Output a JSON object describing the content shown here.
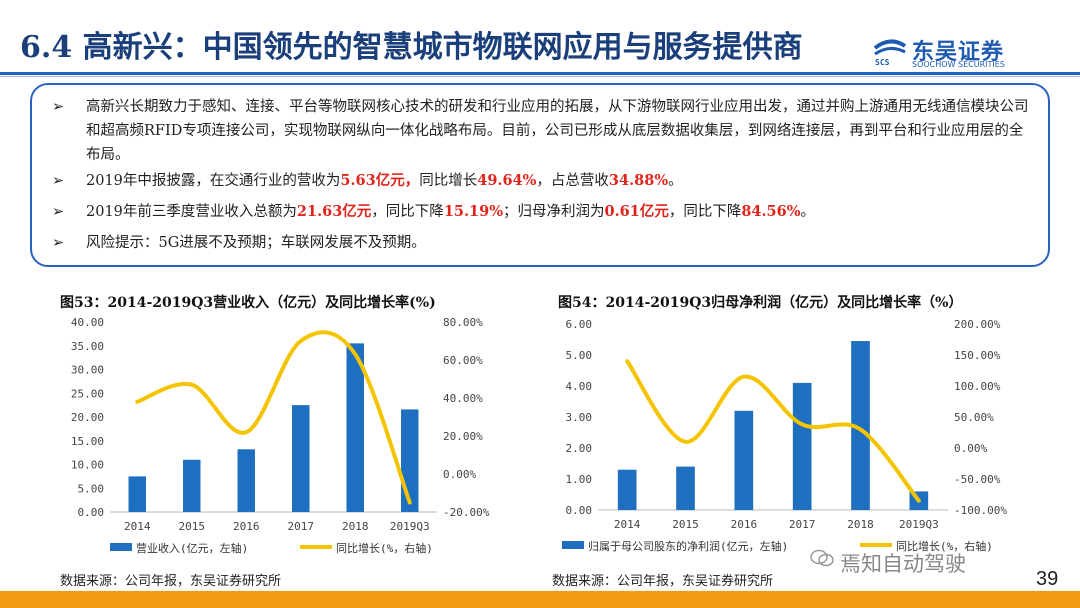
{
  "header": {
    "title": "6.4 高新兴：中国领先的智慧城市物联网应用与服务提供商",
    "logo_name": "东吴证券",
    "logo_sub": "SOOCHOW SECURITIES",
    "logo_mark": "SCS"
  },
  "summary": {
    "bullet_marker": "➢",
    "b1": "高新兴长期致力于感知、连接、平台等物联网核心技术的研发和行业应用的拓展，从下游物联网行业应用出发，通过并购上游通用无线通信模块公司和超高频RFID专项连接公司，实现物联网纵向一体化战略布局。目前，公司已形成从底层数据收集层，到网络连接层，再到平台和行业应用层的全布局。",
    "b2_a": "2019年中报披露，在交通行业的营收为",
    "b2_v1": "5.63亿元，",
    "b2_b": "同比增长",
    "b2_v2": "49.64%",
    "b2_c": "，占总营收",
    "b2_v3": "34.88%",
    "b2_d": "。",
    "b3_a": "2019年前三季度营业收入总额为",
    "b3_v1": "21.63亿元",
    "b3_b": "，同比下降",
    "b3_v2": "15.19%",
    "b3_c": "；归母净利润为",
    "b3_v3": "0.61亿元",
    "b3_d": "，同比下降",
    "b3_v4": "84.56%",
    "b3_e": "。",
    "b4": "风险提示：5G进展不及预期；车联网发展不及预期。"
  },
  "chart1_title": "图53：2014-2019Q3营业收入（亿元）及同比增长率(%)",
  "chart2_title": "图54：2014-2019Q3归母净利润（亿元）及同比增长率（%）",
  "source1": "数据来源：公司年报，东吴证券研究所",
  "source2": "数据来源：公司年报，东吴证券研究所",
  "page_number": "39",
  "watermark": "焉知自动驾驶",
  "colors": {
    "bar": "#1e6fc0",
    "line": "#f5c400",
    "accent": "#e1251b",
    "frame": "#2a62c3"
  },
  "chart_data": [
    {
      "type": "bar",
      "categories": [
        "2014",
        "2015",
        "2016",
        "2017",
        "2018",
        "2019Q3"
      ],
      "series": [
        {
          "name": "营业收入(亿元，左轴)",
          "type": "bar",
          "axis": "left",
          "values": [
            7.5,
            11.0,
            13.2,
            22.5,
            35.5,
            21.6
          ]
        },
        {
          "name": "同比增长(%，右轴)",
          "type": "line",
          "axis": "right",
          "values": [
            38,
            47,
            22,
            70,
            63,
            -15
          ]
        }
      ],
      "left_ticks": [
        "0.00",
        "5.00",
        "10.00",
        "15.00",
        "20.00",
        "25.00",
        "30.00",
        "35.00",
        "40.00"
      ],
      "right_ticks": [
        "-20.00%",
        "0.00%",
        "20.00%",
        "40.00%",
        "60.00%",
        "80.00%"
      ],
      "ylim_left": [
        0,
        40
      ],
      "ylim_right": [
        -20,
        80
      ]
    },
    {
      "type": "bar",
      "categories": [
        "2014",
        "2015",
        "2016",
        "2017",
        "2018",
        "2019Q3"
      ],
      "series": [
        {
          "name": "归属于母公司股东的净利润(亿元，左轴)",
          "type": "bar",
          "axis": "left",
          "values": [
            1.3,
            1.4,
            3.2,
            4.1,
            5.45,
            0.6
          ]
        },
        {
          "name": "同比增长(%，右轴)",
          "type": "line",
          "axis": "right",
          "values": [
            140,
            10,
            115,
            38,
            30,
            -85
          ]
        }
      ],
      "left_ticks": [
        "0.00",
        "1.00",
        "2.00",
        "3.00",
        "4.00",
        "5.00",
        "6.00"
      ],
      "right_ticks": [
        "-100.00%",
        "-50.00%",
        "0.00%",
        "50.00%",
        "100.00%",
        "150.00%",
        "200.00%"
      ],
      "ylim_left": [
        0,
        6
      ],
      "ylim_right": [
        -100,
        200
      ]
    }
  ]
}
